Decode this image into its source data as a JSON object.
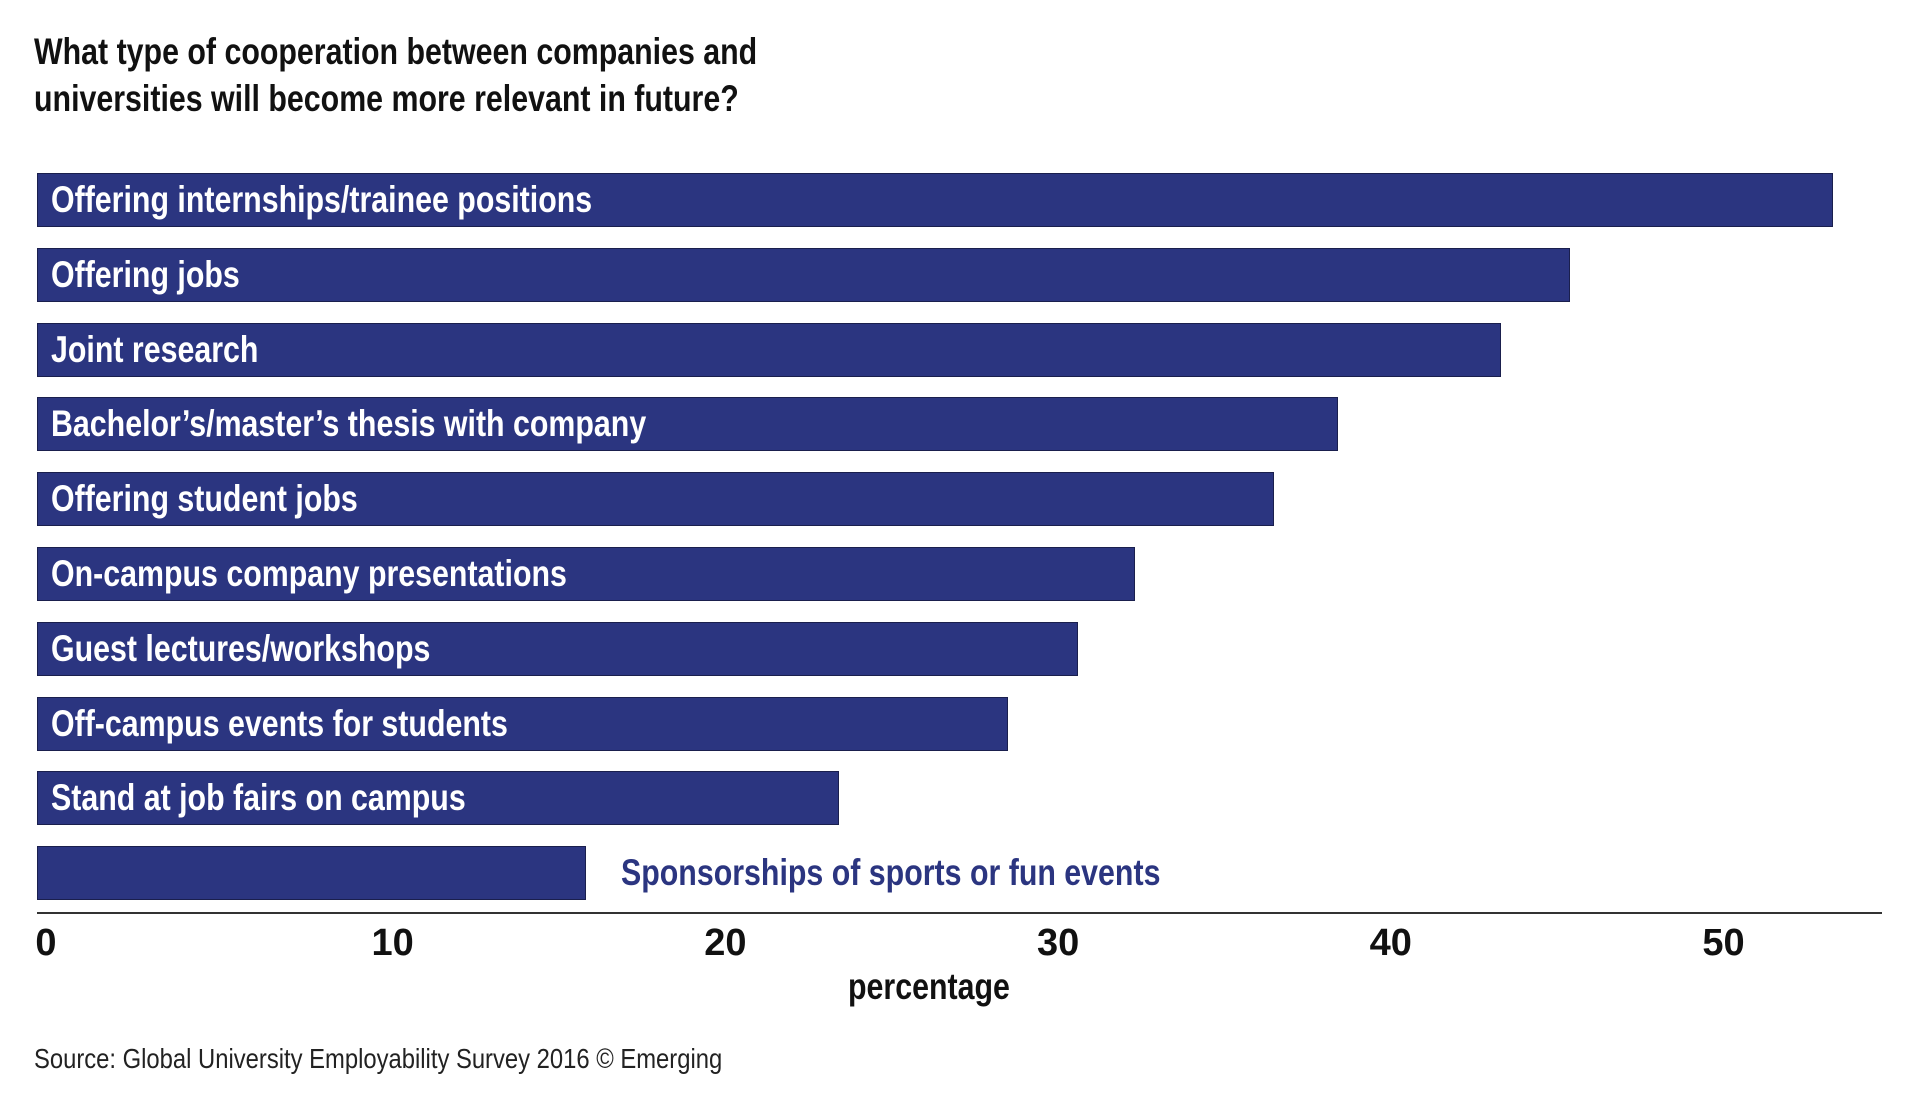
{
  "chart_data": {
    "type": "bar",
    "orientation": "horizontal",
    "title": "What type of cooperation between companies and universities will become more relevant in future?",
    "title_lines": [
      "What type of cooperation between companies and",
      "universities will become more relevant in future?"
    ],
    "categories": [
      "Offering internships/trainee positions",
      "Offering jobs",
      "Joint research",
      "Bachelor’s/master’s thesis with company",
      "Offering student jobs",
      "On-campus company presentations",
      "Guest lectures/workshops",
      "Off-campus events for students",
      "Stand at job fairs on campus",
      "Sponsorships of sports or fun events"
    ],
    "values": [
      53.3,
      45.4,
      43.3,
      38.4,
      36.5,
      32.3,
      30.6,
      28.5,
      23.4,
      15.8
    ],
    "xlabel": "percentage",
    "ylabel": "",
    "xlim": [
      0,
      55
    ],
    "xticks": [
      "0",
      "10",
      "20",
      "30",
      "40",
      "50"
    ],
    "grid": false,
    "bar_color": "#2b3580",
    "source": "Source: Global University Employability Survey 2016 © Emerging"
  }
}
